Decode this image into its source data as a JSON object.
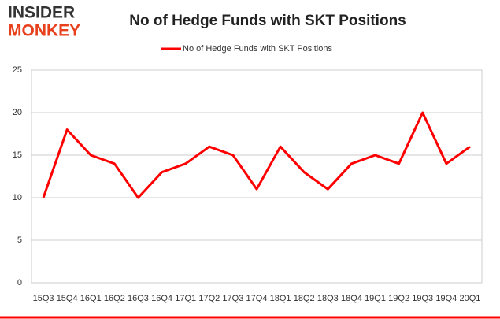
{
  "logo": [
    "INSIDER",
    "MONKEY"
  ],
  "chart_data": {
    "type": "line",
    "title": "No of Hedge Funds with SKT Positions",
    "categories": [
      "15Q3",
      "15Q4",
      "16Q1",
      "16Q2",
      "16Q3",
      "16Q4",
      "17Q1",
      "17Q2",
      "17Q3",
      "17Q4",
      "18Q1",
      "18Q2",
      "18Q3",
      "18Q4",
      "19Q1",
      "19Q2",
      "19Q3",
      "19Q4",
      "20Q1"
    ],
    "series": [
      {
        "name": "No of Hedge Funds with SKT Positions",
        "color": "#ff0000",
        "values": [
          10,
          18,
          15,
          14,
          10,
          13,
          14,
          16,
          15,
          11,
          16,
          13,
          11,
          14,
          15,
          14,
          20,
          14,
          16
        ]
      }
    ],
    "ylim": [
      0,
      25
    ],
    "yticks": [
      0,
      5,
      10,
      15,
      20,
      25
    ],
    "grid": true,
    "legend": "top"
  }
}
